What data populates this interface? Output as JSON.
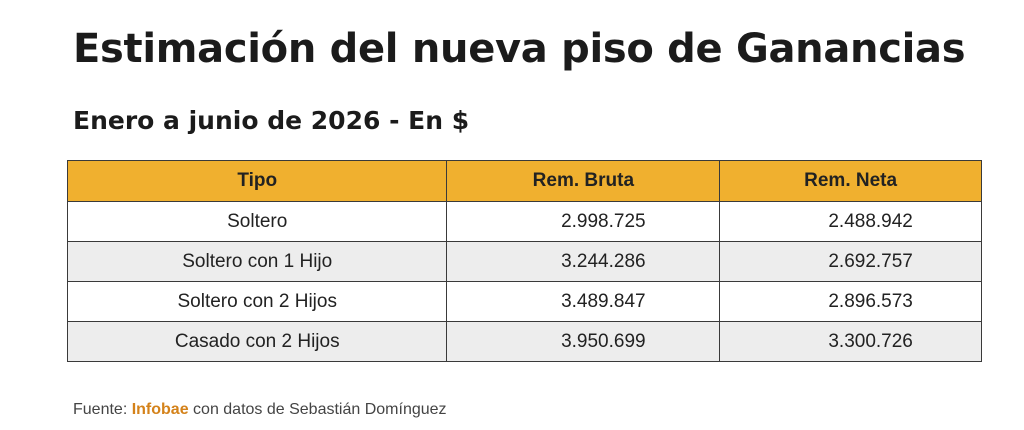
{
  "title": "Estimación del nueva piso de Ganancias",
  "subtitle": "Enero a junio de 2026 - En $",
  "table": {
    "headers": [
      "Tipo",
      "Rem. Bruta",
      "Rem. Neta"
    ],
    "rows": [
      {
        "tipo": "Soltero",
        "bruta": "2.998.725",
        "neta": "2.488.942"
      },
      {
        "tipo": "Soltero con 1 Hijo",
        "bruta": "3.244.286",
        "neta": "2.692.757"
      },
      {
        "tipo": "Soltero con 2 Hijos",
        "bruta": "3.489.847",
        "neta": "2.896.573"
      },
      {
        "tipo": "Casado con 2 Hijos",
        "bruta": "3.950.699",
        "neta": "3.300.726"
      }
    ]
  },
  "source": {
    "prefix": "Fuente: ",
    "brand": "Infobae",
    "suffix": " con datos de Sebastián Domínguez"
  },
  "colors": {
    "header_bg": "#f0b02f",
    "alt_row_bg": "#ededed",
    "brand": "#d4821a"
  }
}
